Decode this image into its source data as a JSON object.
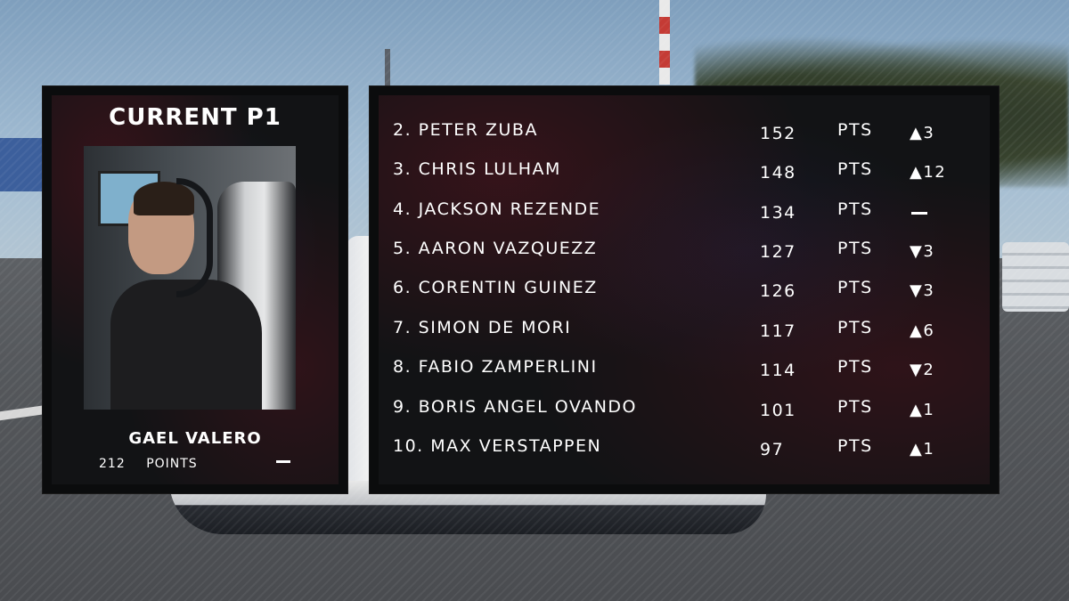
{
  "current_p1": {
    "title": "CURRENT P1",
    "name": "GAEL VALERO",
    "points": "212",
    "points_label": "POINTS",
    "change": "none"
  },
  "standings": [
    {
      "position_name": "2. PETER ZUBA",
      "points": "152",
      "unit": "PTS",
      "change": "▲3"
    },
    {
      "position_name": "3. CHRIS LULHAM",
      "points": "148",
      "unit": "PTS",
      "change": "▲12"
    },
    {
      "position_name": "4. JACKSON REZENDE",
      "points": "134",
      "unit": "PTS",
      "change": ""
    },
    {
      "position_name": "5. AARON VAZQUEZZ",
      "points": "127",
      "unit": "PTS",
      "change": "▼3"
    },
    {
      "position_name": "6. CORENTIN GUINEZ",
      "points": "126",
      "unit": "PTS",
      "change": "▼3"
    },
    {
      "position_name": "7. SIMON DE MORI",
      "points": "117",
      "unit": "PTS",
      "change": "▲6"
    },
    {
      "position_name": "8. FABIO ZAMPERLINI",
      "points": "114",
      "unit": "PTS",
      "change": "▼2"
    },
    {
      "position_name": "9. BORIS ANGEL OVANDO",
      "points": "101",
      "unit": "PTS",
      "change": "▲1"
    },
    {
      "position_name": "10. MAX VERSTAPPEN",
      "points": "97",
      "unit": "PTS",
      "change": "▲1"
    }
  ],
  "colors": {
    "panel": "#0b0c0d",
    "text": "#ffffff",
    "accent": "#78141f"
  }
}
